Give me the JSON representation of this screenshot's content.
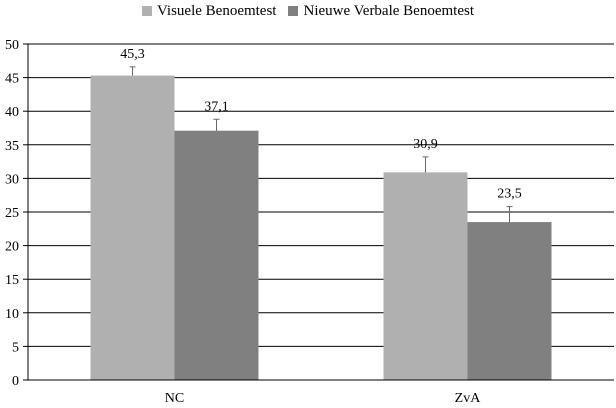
{
  "chart_data": {
    "type": "bar",
    "categories": [
      "NC",
      "ZvA"
    ],
    "series": [
      {
        "name": "Visuele Benoemtest",
        "values": [
          45.3,
          30.9
        ],
        "errors": [
          1.3,
          2.3
        ],
        "labels": [
          "45,3",
          "30,9"
        ],
        "color": "#b0b0b0"
      },
      {
        "name": "Nieuwe Verbale Benoemtest",
        "values": [
          37.1,
          23.5
        ],
        "errors": [
          1.7,
          2.3
        ],
        "labels": [
          "37,1",
          "23,5"
        ],
        "color": "#808080"
      }
    ],
    "ylim": [
      0,
      50
    ],
    "yticks": [
      0,
      5,
      10,
      15,
      20,
      25,
      30,
      35,
      40,
      45,
      50
    ],
    "xlabel": "",
    "ylabel": "",
    "title": "",
    "grid": true,
    "legend": "top-center"
  }
}
